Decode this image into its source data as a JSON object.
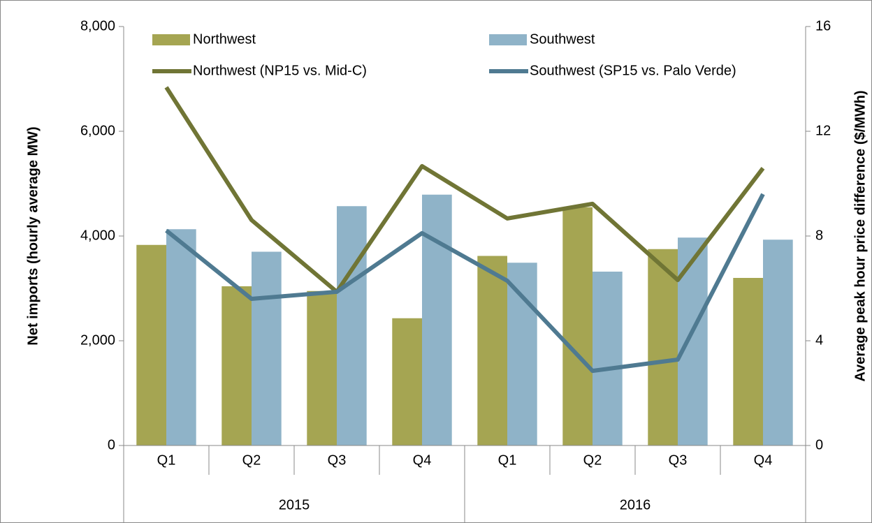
{
  "chart_data": {
    "type": "bar_line",
    "categories": [
      "Q1",
      "Q2",
      "Q3",
      "Q4",
      "Q1",
      "Q2",
      "Q3",
      "Q4"
    ],
    "category_groups": [
      "2015",
      "2016"
    ],
    "ylabel": "Net imports (hourly average MW)",
    "y2label": "Average peak hour price difference ($/MWh)",
    "ylim": [
      0,
      8000
    ],
    "yticks": [
      0,
      {
        "value": 2000,
        "label": "2,000"
      },
      {
        "value": 4000,
        "label": "4,000"
      },
      {
        "value": 6000,
        "label": "6,000"
      },
      {
        "value": 8000,
        "label": "8,000"
      }
    ],
    "y2lim": [
      0,
      16
    ],
    "y2ticks": [
      0,
      4,
      8,
      12,
      16
    ],
    "series": [
      {
        "name": "Northwest",
        "kind": "bar",
        "color": "#a5a552",
        "values": [
          3830,
          3040,
          2950,
          2430,
          3620,
          4550,
          3750,
          3200
        ]
      },
      {
        "name": "Southwest",
        "kind": "bar",
        "color": "#8fb3c8",
        "values": [
          4130,
          3700,
          4570,
          4790,
          3490,
          3320,
          3970,
          3930
        ]
      },
      {
        "name": "Northwest (NP15 vs. Mid-C)",
        "kind": "line",
        "axis": "y2",
        "color": "#707535",
        "values": [
          13.68,
          8.61,
          5.87,
          10.67,
          8.67,
          9.23,
          6.32,
          10.59
        ]
      },
      {
        "name": "Southwest (SP15 vs. Palo Verde)",
        "kind": "line",
        "axis": "y2",
        "color": "#4f7a91",
        "values": [
          8.21,
          5.6,
          5.87,
          8.11,
          6.29,
          2.85,
          3.28,
          9.6
        ]
      }
    ]
  }
}
